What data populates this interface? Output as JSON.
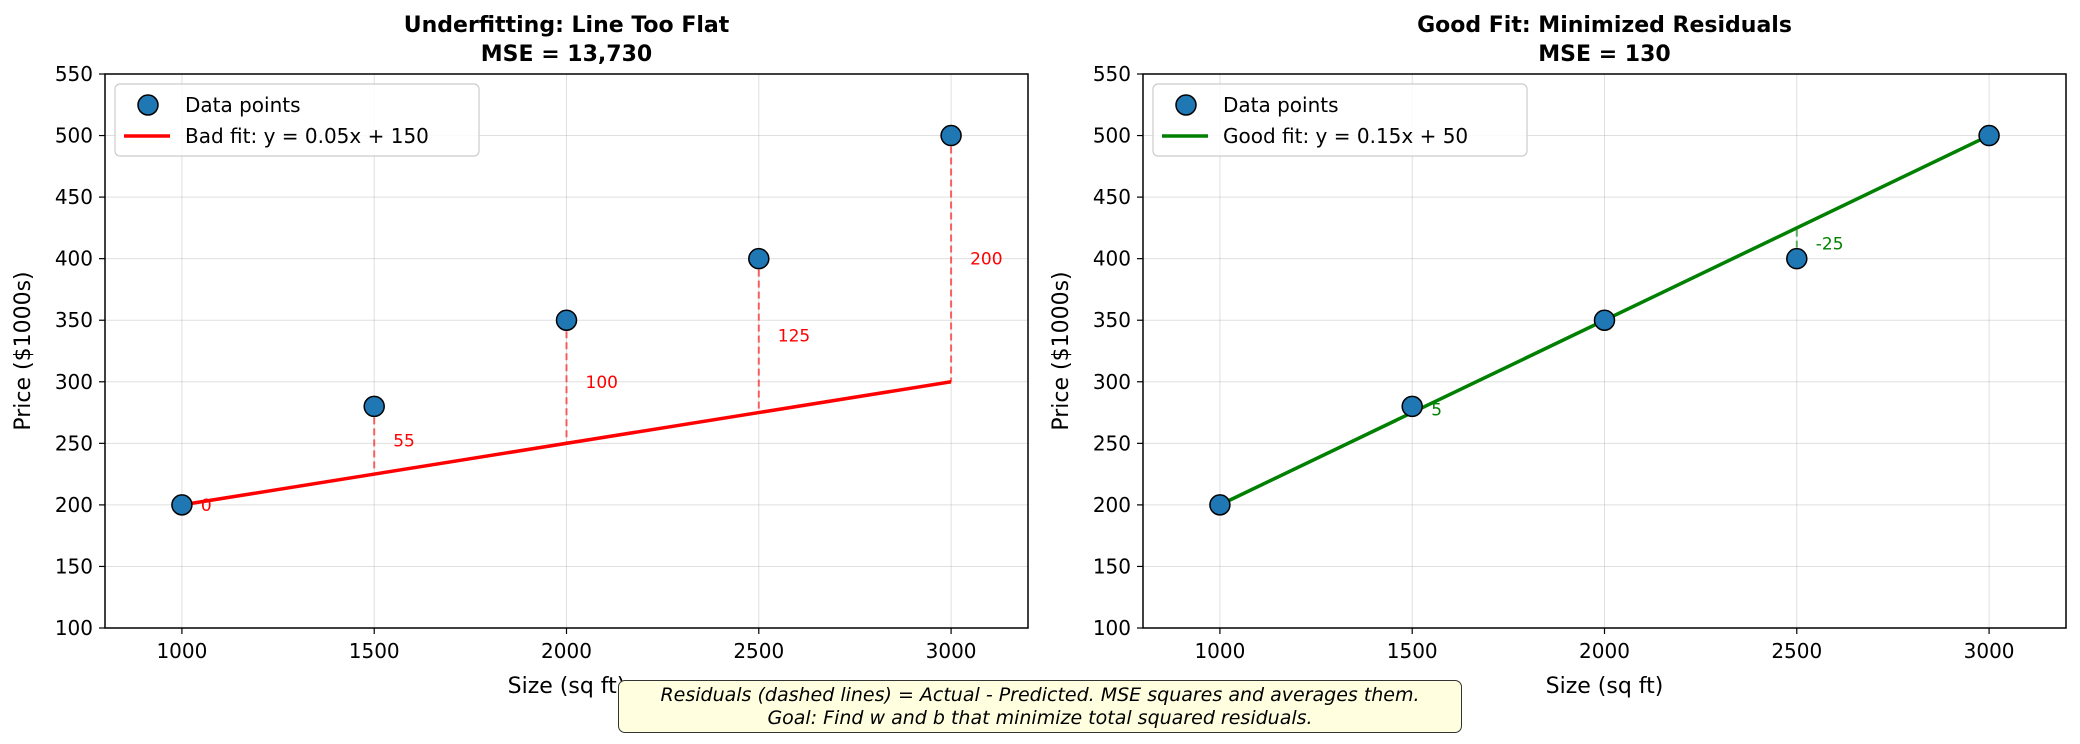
{
  "chart_data": [
    {
      "type": "scatter",
      "title": "Underfitting: Line Too Flat",
      "subtitle": "MSE = 13,730",
      "xlabel": "Size (sq ft)",
      "ylabel": "Price ($1000s)",
      "xlim": [
        800,
        3200
      ],
      "ylim": [
        100,
        550
      ],
      "xticks": [
        1000,
        1500,
        2000,
        2500,
        3000
      ],
      "yticks": [
        100,
        150,
        200,
        250,
        300,
        350,
        400,
        450,
        500,
        550
      ],
      "grid": true,
      "legend_position": "top-left",
      "points_name": "Data points",
      "points": [
        {
          "x": 1000,
          "y": 200
        },
        {
          "x": 1500,
          "y": 280
        },
        {
          "x": 2000,
          "y": 350
        },
        {
          "x": 2500,
          "y": 400
        },
        {
          "x": 3000,
          "y": 500
        }
      ],
      "fit_name": "Bad fit: y = 0.05x + 150",
      "fit": {
        "slope": 0.05,
        "intercept": 150
      },
      "fit_color": "#ff0000",
      "residual_labels": [
        "0",
        "55",
        "100",
        "125",
        "200"
      ]
    },
    {
      "type": "scatter",
      "title": "Good Fit: Minimized Residuals",
      "subtitle": "MSE = 130",
      "xlabel": "Size (sq ft)",
      "ylabel": "Price ($1000s)",
      "xlim": [
        800,
        3200
      ],
      "ylim": [
        100,
        550
      ],
      "xticks": [
        1000,
        1500,
        2000,
        2500,
        3000
      ],
      "yticks": [
        100,
        150,
        200,
        250,
        300,
        350,
        400,
        450,
        500,
        550
      ],
      "grid": true,
      "legend_position": "top-left",
      "points_name": "Data points",
      "points": [
        {
          "x": 1000,
          "y": 200
        },
        {
          "x": 1500,
          "y": 280
        },
        {
          "x": 2000,
          "y": 350
        },
        {
          "x": 2500,
          "y": 400
        },
        {
          "x": 3000,
          "y": 500
        }
      ],
      "fit_name": "Good fit: y = 0.15x + 50",
      "fit": {
        "slope": 0.15,
        "intercept": 50
      },
      "fit_color": "#008000",
      "residual_labels": [
        "",
        "5",
        "",
        "-25",
        ""
      ]
    }
  ],
  "note": {
    "line1": "Residuals (dashed lines) = Actual - Predicted. MSE squares and averages them.",
    "line2": "Goal: Find w and b that minimize total squared residuals."
  },
  "colors": {
    "points": "#1f77b4",
    "grid": "#b0b0b0",
    "note_background": "#ffffe0"
  }
}
